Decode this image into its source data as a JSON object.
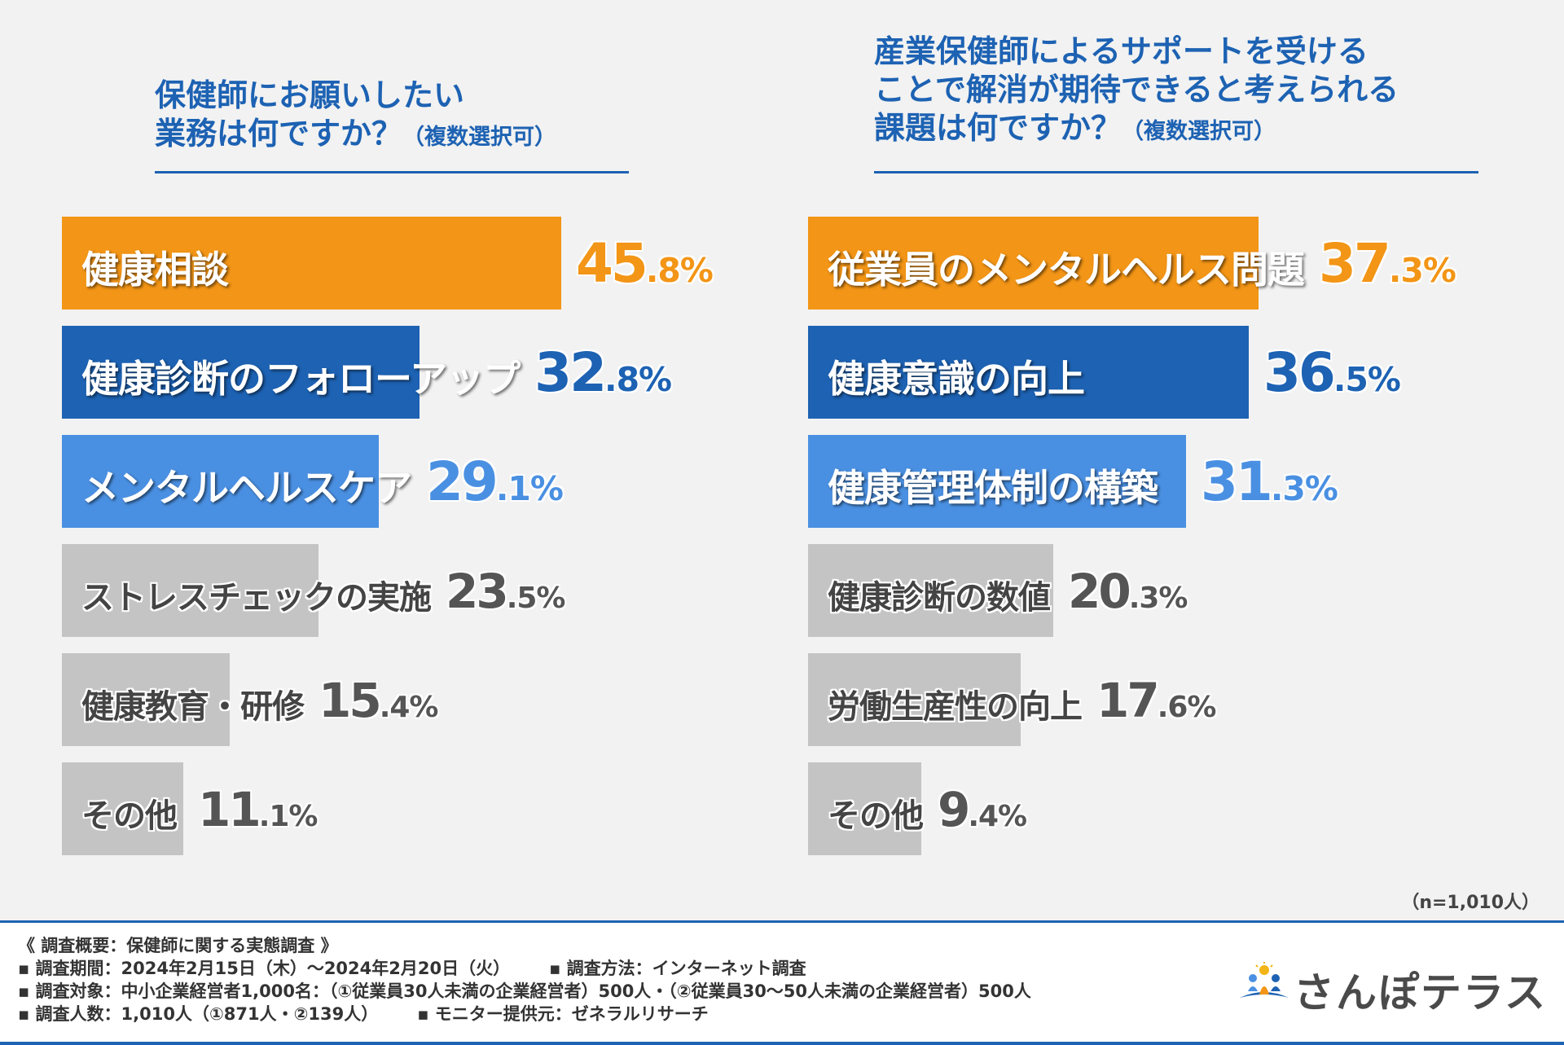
{
  "chart_data": [
    {
      "type": "bar",
      "orientation": "horizontal",
      "title": "保健師にお願いしたい業務は何ですか？",
      "title_lines": [
        "保健師にお願いしたい",
        "業務は何ですか？"
      ],
      "title_suffix": "（複数選択可）",
      "categories": [
        "健康相談",
        "健康診断のフォローアップ",
        "メンタルヘルスケア",
        "ストレスチェックの実施",
        "健康教育・研修",
        "その他"
      ],
      "values": [
        45.8,
        32.8,
        29.1,
        23.5,
        15.4,
        11.1
      ],
      "unit": "%",
      "xlim": [
        0,
        45.8
      ],
      "colors": [
        "#f39516",
        "#1d62b3",
        "#4a90e2",
        "#c4c4c4",
        "#c4c4c4",
        "#c4c4c4"
      ]
    },
    {
      "type": "bar",
      "orientation": "horizontal",
      "title": "産業保健師によるサポートを受けることで解消が期待できると考えられる課題は何ですか？",
      "title_lines": [
        "産業保健師によるサポートを受ける",
        "ことで解消が期待できると考えられる",
        "課題は何ですか？"
      ],
      "title_suffix": "（複数選択可）",
      "categories": [
        "従業員のメンタルヘルス問題",
        "健康意識の向上",
        "健康管理体制の構築",
        "健康診断の数値",
        "労働生産性の向上",
        "その他"
      ],
      "values": [
        37.3,
        36.5,
        31.3,
        20.3,
        17.6,
        9.4
      ],
      "unit": "%",
      "xlim": [
        0,
        37.3
      ],
      "colors": [
        "#f39516",
        "#1d62b3",
        "#4a90e2",
        "#c4c4c4",
        "#c4c4c4",
        "#c4c4c4"
      ]
    }
  ],
  "sample_note": "（n=1,010人）",
  "footer": {
    "heading": "《 調査概要：保健師に関する実態調査 》",
    "period": "▪ 調査期間：2024年2月15日（木）～2024年2月20日（火）",
    "method": "▪ 調査方法：インターネット調査",
    "target": "▪ 調査対象：中小企業経営者1,000名：（①従業員30人未満の企業経営者）500人・（②従業員30～50人未満の企業経営者）500人",
    "count": "▪ 調査人数：1,010人（①871人・②139人）",
    "provider": "▪ モニター提供元：ゼネラルリサーチ"
  },
  "brand": {
    "name": "さんぽテラス",
    "logo_icon": "sanpo-terrace-logo-icon"
  }
}
